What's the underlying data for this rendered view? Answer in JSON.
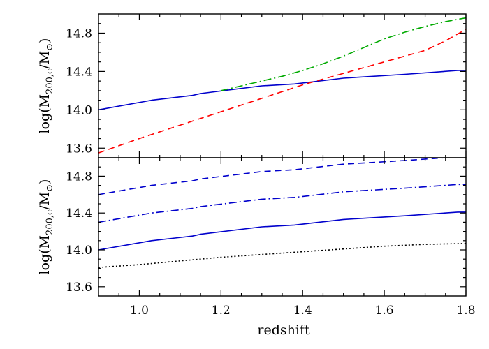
{
  "figure": {
    "xlabel": "redshift"
  },
  "chart_data": [
    {
      "type": "line",
      "panel": "top",
      "ylabel_parts": [
        "log(M",
        "200,c",
        "/M",
        "⊙",
        ")"
      ],
      "xlim": [
        0.9,
        1.8
      ],
      "ylim": [
        13.5,
        15.0
      ],
      "x_ticks": [
        1.0,
        1.2,
        1.4,
        1.6,
        1.8
      ],
      "x_tick_labels": [
        "1.0",
        "1.2",
        "1.4",
        "1.6",
        "1.8"
      ],
      "y_ticks": [
        13.6,
        14.0,
        14.4,
        14.8
      ],
      "y_tick_labels": [
        "13.6",
        "14.0",
        "14.4",
        "14.8"
      ],
      "series": [
        {
          "style": "solid",
          "color": "#0000cc",
          "x": [
            0.9,
            1.03,
            1.13,
            1.15,
            1.3,
            1.38,
            1.5,
            1.65,
            1.78,
            1.8
          ],
          "y": [
            14.0,
            14.1,
            14.15,
            14.17,
            14.25,
            14.27,
            14.33,
            14.37,
            14.41,
            14.41
          ]
        },
        {
          "style": "dashed",
          "color": "#ff0000",
          "x": [
            0.9,
            1.0,
            1.1,
            1.2,
            1.3,
            1.4,
            1.5,
            1.6,
            1.7,
            1.75,
            1.8
          ],
          "y": [
            13.55,
            13.7,
            13.84,
            13.98,
            14.12,
            14.26,
            14.38,
            14.5,
            14.62,
            14.72,
            14.84
          ]
        },
        {
          "style": "dashdot",
          "color": "#00aa00",
          "x": [
            1.2,
            1.25,
            1.3,
            1.35,
            1.4,
            1.45,
            1.5,
            1.55,
            1.6,
            1.65,
            1.7,
            1.75,
            1.8
          ],
          "y": [
            14.2,
            14.25,
            14.3,
            14.35,
            14.41,
            14.48,
            14.56,
            14.65,
            14.74,
            14.81,
            14.87,
            14.92,
            14.96
          ]
        }
      ]
    },
    {
      "type": "line",
      "panel": "bottom",
      "ylabel_parts": [
        "log(M",
        "200,c",
        "/M",
        "⊙",
        ")"
      ],
      "xlim": [
        0.9,
        1.8
      ],
      "ylim": [
        13.5,
        15.0
      ],
      "x_ticks": [
        1.0,
        1.2,
        1.4,
        1.6,
        1.8
      ],
      "x_tick_labels": [
        "1.0",
        "1.2",
        "1.4",
        "1.6",
        "1.8"
      ],
      "y_ticks": [
        13.6,
        14.0,
        14.4,
        14.8
      ],
      "y_tick_labels": [
        "13.6",
        "14.0",
        "14.4",
        "14.8"
      ],
      "series": [
        {
          "style": "dashed",
          "color": "#0000cc",
          "x": [
            0.9,
            1.03,
            1.13,
            1.15,
            1.3,
            1.38,
            1.5,
            1.65,
            1.78,
            1.8
          ],
          "y": [
            14.6,
            14.7,
            14.75,
            14.77,
            14.85,
            14.87,
            14.93,
            14.97,
            15.01,
            15.01
          ]
        },
        {
          "style": "dashdot",
          "color": "#0000cc",
          "x": [
            0.9,
            1.03,
            1.13,
            1.15,
            1.3,
            1.38,
            1.5,
            1.65,
            1.78,
            1.8
          ],
          "y": [
            14.3,
            14.4,
            14.45,
            14.47,
            14.55,
            14.57,
            14.63,
            14.67,
            14.71,
            14.71
          ]
        },
        {
          "style": "solid",
          "color": "#0000cc",
          "x": [
            0.9,
            1.03,
            1.13,
            1.15,
            1.3,
            1.38,
            1.5,
            1.65,
            1.78,
            1.8
          ],
          "y": [
            14.0,
            14.1,
            14.15,
            14.17,
            14.25,
            14.27,
            14.33,
            14.37,
            14.41,
            14.41
          ]
        },
        {
          "style": "dotted",
          "color": "#000000",
          "x": [
            0.9,
            1.0,
            1.1,
            1.2,
            1.3,
            1.4,
            1.5,
            1.6,
            1.7,
            1.8
          ],
          "y": [
            13.81,
            13.84,
            13.88,
            13.92,
            13.95,
            13.98,
            14.01,
            14.04,
            14.06,
            14.07
          ]
        }
      ]
    }
  ]
}
